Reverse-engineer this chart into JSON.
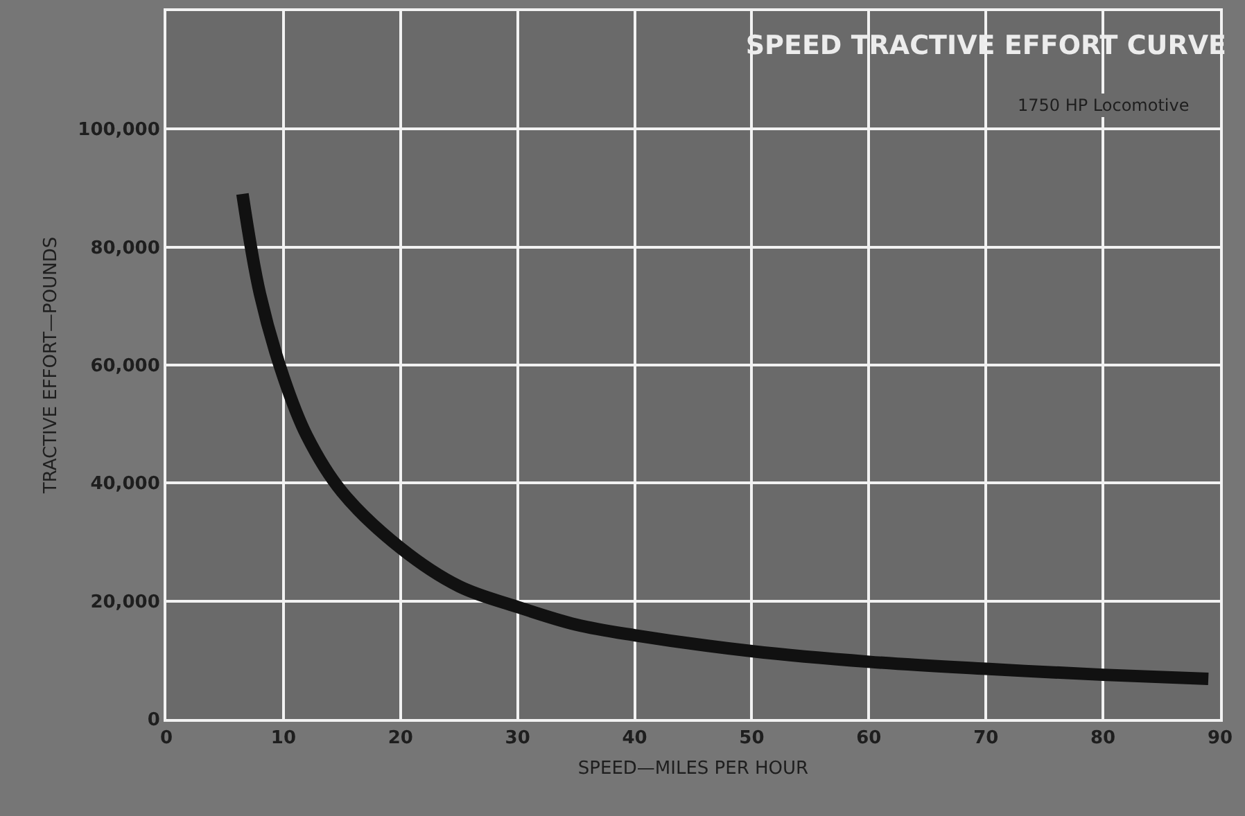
{
  "chart_data": {
    "type": "line",
    "title": "SPEED TRACTIVE EFFORT CURVE",
    "subtitle": "1750 HP Locomotive",
    "xlabel": "SPEED—MILES PER HOUR",
    "ylabel": "TRACTIVE EFFORT—POUNDS",
    "x": [
      6.5,
      8,
      10,
      12,
      15,
      20,
      25,
      30,
      35,
      40,
      50,
      60,
      70,
      80,
      89
    ],
    "series": [
      {
        "color": "#111111",
        "values": [
          89000,
          72000,
          58000,
          48000,
          38500,
          29000,
          22500,
          19000,
          16000,
          14200,
          11500,
          9700,
          8500,
          7500,
          6800
        ]
      }
    ],
    "xlim": [
      0,
      90
    ],
    "xticks": [
      0,
      10,
      20,
      30,
      40,
      50,
      60,
      70,
      80,
      90
    ],
    "ylim": [
      0,
      120000
    ],
    "yticks": [
      {
        "value": 0,
        "label": "0"
      },
      {
        "value": 20000,
        "label": "20,000"
      },
      {
        "value": 40000,
        "label": "40,000"
      },
      {
        "value": 60000,
        "label": "60,000"
      },
      {
        "value": 80000,
        "label": "80,000"
      },
      {
        "value": 100000,
        "label": "100,000"
      },
      {
        "value": 120000,
        "label": null
      }
    ],
    "grid": true,
    "marker": "none",
    "line_style": "solid"
  }
}
